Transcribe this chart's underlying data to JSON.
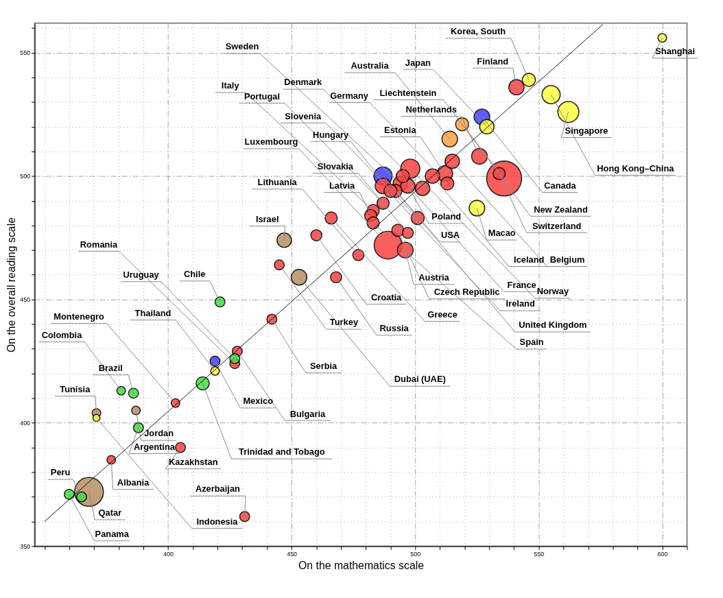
{
  "chart_data": {
    "type": "bubble",
    "xlabel": "On the mathematics scale",
    "ylabel": "On the overall reading scale",
    "xlim": [
      346,
      610
    ],
    "ylim": [
      350,
      562
    ],
    "xticks": [
      {
        "value": 350,
        "label": null
      },
      {
        "value": 360,
        "label": null
      },
      {
        "value": 370,
        "label": null
      },
      {
        "value": 380,
        "label": null
      },
      {
        "value": 390,
        "label": null
      },
      400,
      {
        "value": 410,
        "label": null
      },
      {
        "value": 420,
        "label": null
      },
      {
        "value": 430,
        "label": null
      },
      {
        "value": 440,
        "label": null
      },
      450,
      {
        "value": 460,
        "label": null
      },
      {
        "value": 470,
        "label": null
      },
      {
        "value": 480,
        "label": null
      },
      {
        "value": 490,
        "label": null
      },
      500,
      {
        "value": 510,
        "label": null
      },
      {
        "value": 520,
        "label": null
      },
      {
        "value": 530,
        "label": null
      },
      {
        "value": 540,
        "label": null
      },
      550,
      {
        "value": 560,
        "label": null
      },
      {
        "value": 570,
        "label": null
      },
      {
        "value": 580,
        "label": null
      },
      {
        "value": 590,
        "label": null
      },
      600,
      {
        "value": 610,
        "label": null
      }
    ],
    "yticks": [
      350,
      {
        "value": 360,
        "label": null
      },
      {
        "value": 370,
        "label": null
      },
      {
        "value": 380,
        "label": null
      },
      {
        "value": 390,
        "label": null
      },
      400,
      {
        "value": 410,
        "label": null
      },
      {
        "value": 420,
        "label": null
      },
      {
        "value": 430,
        "label": null
      },
      {
        "value": 440,
        "label": null
      },
      450,
      {
        "value": 460,
        "label": null
      },
      {
        "value": 470,
        "label": null
      },
      {
        "value": 480,
        "label": null
      },
      {
        "value": 490,
        "label": null
      },
      500,
      {
        "value": 510,
        "label": null
      },
      {
        "value": 520,
        "label": null
      },
      {
        "value": 530,
        "label": null
      },
      {
        "value": 540,
        "label": null
      },
      550,
      {
        "value": 560,
        "label": null
      }
    ],
    "grid": true,
    "series": [
      {
        "color": "#ff4040",
        "x": [
          541,
          526,
          515,
          498,
          512,
          534,
          495,
          507,
          536,
          494,
          513,
          487,
          497,
          503,
          492,
          490,
          487,
          483,
          482,
          501,
          466,
          483,
          493,
          497,
          460,
          489,
          496,
          477,
          445,
          468,
          442,
          428,
          427,
          403,
          405,
          377,
          431
        ],
        "values": [
          536,
          508,
          506,
          503,
          501,
          501,
          500,
          500,
          499,
          497,
          497,
          496,
          496,
          495,
          494,
          494,
          489,
          486,
          484,
          483,
          483,
          481,
          478,
          477,
          476,
          472,
          470,
          468,
          464,
          459,
          442,
          429,
          424,
          408,
          390,
          385,
          362
        ],
        "sizes": [
          0.19,
          0.2,
          0.17,
          0.3,
          0.2,
          0.12,
          0.14,
          0.17,
          1,
          0.17,
          0.14,
          0.2,
          0.17,
          0.17,
          0.14,
          0.14,
          0.12,
          0.12,
          0.12,
          0.14,
          0.12,
          0.12,
          0.12,
          0.1,
          0.1,
          0.63,
          0.2,
          0.1,
          0.08,
          0.1,
          0.08,
          0.08,
          0.08,
          0.06,
          0.08,
          0.06,
          0.08
        ]
      },
      {
        "color": "#ffff40",
        "x": [
          600,
          546,
          555,
          562,
          529,
          525,
          419,
          371
        ],
        "values": [
          556,
          539,
          533,
          526,
          520,
          487,
          421,
          402
        ],
        "sizes": [
          0.06,
          0.14,
          0.27,
          0.36,
          0.17,
          0.2,
          0.06,
          0.04
        ]
      },
      {
        "color": "#4040ff",
        "x": [
          527,
          487,
          419
        ],
        "values": [
          524,
          500,
          425
        ],
        "sizes": [
          0.2,
          0.27,
          0.08
        ]
      },
      {
        "color": "#40e040",
        "x": [
          421,
          427,
          414,
          381,
          386,
          388,
          365,
          360
        ],
        "values": [
          449,
          426,
          416,
          413,
          412,
          398,
          370,
          371
        ],
        "sizes": [
          0.08,
          0.08,
          0.14,
          0.06,
          0.08,
          0.08,
          0.08,
          0.08
        ]
      },
      {
        "color": "#b89068",
        "x": [
          447,
          453,
          387,
          371,
          368
        ],
        "values": [
          474,
          459,
          405,
          404,
          372
        ],
        "sizes": [
          0.17,
          0.2,
          0.06,
          0.06,
          0.68
        ]
      },
      {
        "color": "#ffa040",
        "x": [
          514,
          519
        ],
        "values": [
          515,
          521
        ],
        "sizes": [
          0.2,
          0.14
        ]
      },
      {
        "type": "line",
        "color": "#000000",
        "x": [
          350,
          576
        ],
        "values": [
          360,
          561.5
        ]
      }
    ],
    "annotations": [
      {
        "text": "Korea, South",
        "x": 546,
        "y": 539
      },
      {
        "text": "Shanghai",
        "x": 600,
        "y": 556
      },
      {
        "text": "Sweden",
        "x": 494,
        "y": 497
      },
      {
        "text": "Finland",
        "x": 541,
        "y": 536
      },
      {
        "text": "Australia",
        "x": 514,
        "y": 515
      },
      {
        "text": "Japan",
        "x": 529,
        "y": 520
      },
      {
        "text": "Denmark",
        "x": 503,
        "y": 495
      },
      {
        "text": "Italy",
        "x": 483,
        "y": 486
      },
      {
        "text": "Liechtenstein",
        "x": 536,
        "y": 499
      },
      {
        "text": "Germany",
        "x": 513,
        "y": 497
      },
      {
        "text": "Portugal",
        "x": 487,
        "y": 489
      },
      {
        "text": "Netherlands",
        "x": 526,
        "y": 508
      },
      {
        "text": "Slovenia",
        "x": 501,
        "y": 483
      },
      {
        "text": "Estonia",
        "x": 512,
        "y": 501
      },
      {
        "text": "Hungary",
        "x": 490,
        "y": 494
      },
      {
        "text": "Singapore",
        "x": 562,
        "y": 526
      },
      {
        "text": "Luxembourg",
        "x": 489,
        "y": 472
      },
      {
        "text": "Hong Kong–China",
        "x": 555,
        "y": 533
      },
      {
        "text": "Slovakia",
        "x": 497,
        "y": 477
      },
      {
        "text": "Latvia",
        "x": 482,
        "y": 484
      },
      {
        "text": "Canada",
        "x": 527,
        "y": 524
      },
      {
        "text": "Lithuania",
        "x": 477,
        "y": 468
      },
      {
        "text": "New Zealand",
        "x": 519,
        "y": 521
      },
      {
        "text": "Poland",
        "x": 495,
        "y": 500
      },
      {
        "text": "Switzerland",
        "x": 534,
        "y": 501
      },
      {
        "text": "Israel",
        "x": 447,
        "y": 474
      },
      {
        "text": "USA",
        "x": 487,
        "y": 500
      },
      {
        "text": "Macao",
        "x": 525,
        "y": 487
      },
      {
        "text": "Romania",
        "x": 427,
        "y": 424
      },
      {
        "text": "Iceland",
        "x": 507,
        "y": 500
      },
      {
        "text": "Belgium",
        "x": 515,
        "y": 506
      },
      {
        "text": "Uruguay",
        "x": 427,
        "y": 426
      },
      {
        "text": "Chile",
        "x": 421,
        "y": 449
      },
      {
        "text": "Austria",
        "x": 496,
        "y": 470
      },
      {
        "text": "France",
        "x": 497,
        "y": 496
      },
      {
        "text": "Norway",
        "x": 498,
        "y": 503
      },
      {
        "text": "Czech Republic",
        "x": 493,
        "y": 478
      },
      {
        "text": "Croatia",
        "x": 460,
        "y": 476
      },
      {
        "text": "Ireland",
        "x": 487,
        "y": 496
      },
      {
        "text": "Greece",
        "x": 466,
        "y": 483
      },
      {
        "text": "Thailand",
        "x": 419,
        "y": 421
      },
      {
        "text": "Montenegro",
        "x": 403,
        "y": 408
      },
      {
        "text": "Turkey",
        "x": 445,
        "y": 464
      },
      {
        "text": "Russia",
        "x": 468,
        "y": 459
      },
      {
        "text": "United Kingdom",
        "x": 492,
        "y": 494
      },
      {
        "text": "Colombia",
        "x": 381,
        "y": 413
      },
      {
        "text": "Spain",
        "x": 483,
        "y": 481
      },
      {
        "text": "Serbia",
        "x": 442,
        "y": 442
      },
      {
        "text": "Brazil",
        "x": 386,
        "y": 412
      },
      {
        "text": "Dubai (UAE)",
        "x": 453,
        "y": 459
      },
      {
        "text": "Tunisia",
        "x": 371,
        "y": 404
      },
      {
        "text": "Mexico",
        "x": 419,
        "y": 425
      },
      {
        "text": "Bulgaria",
        "x": 428,
        "y": 429
      },
      {
        "text": "Jordan",
        "x": 387,
        "y": 405
      },
      {
        "text": "Argentina",
        "x": 388,
        "y": 398
      },
      {
        "text": "Trinidad and Tobago",
        "x": 414,
        "y": 416
      },
      {
        "text": "Kazakhstan",
        "x": 405,
        "y": 390
      },
      {
        "text": "Albania",
        "x": 377,
        "y": 385
      },
      {
        "text": "Peru",
        "x": 365,
        "y": 370
      },
      {
        "text": "Azerbaijan",
        "x": 431,
        "y": 362
      },
      {
        "text": "Qatar",
        "x": 368,
        "y": 372
      },
      {
        "text": "Indonesia",
        "x": 371,
        "y": 402
      },
      {
        "text": "Panama",
        "x": 360,
        "y": 371
      }
    ]
  }
}
